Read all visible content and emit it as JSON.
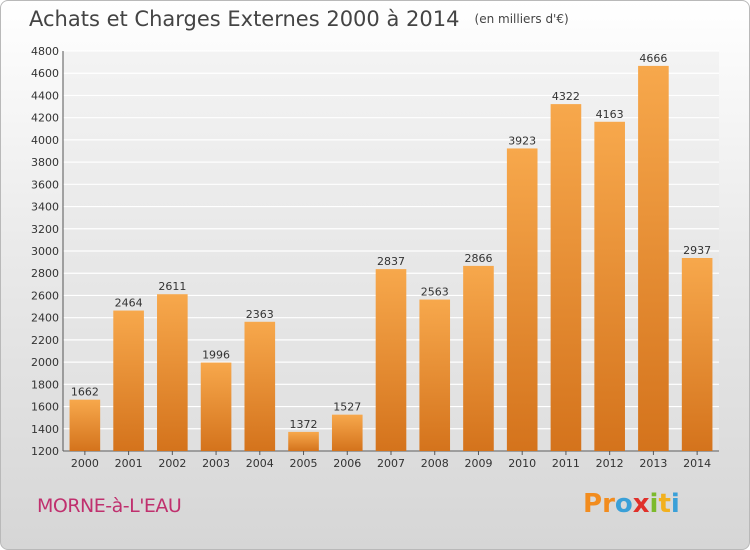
{
  "header": {
    "title": "Achats et Charges Externes 2000 à 2014",
    "unit": "(en milliers d'€)"
  },
  "footer": {
    "commune": "MORNE-à-L'EAU",
    "logo_letters": [
      "P",
      "r",
      "o",
      "x",
      "i",
      "t",
      "i"
    ],
    "logo_colors": [
      "#f28c1e",
      "#f28c1e",
      "#3aa0d8",
      "#e0302a",
      "#7cba2c",
      "#f2b01e",
      "#3aa0d8"
    ]
  },
  "colors": {
    "bar_light": "#f7a84c",
    "bar_dark": "#d4731c",
    "grid": "#ffffff"
  },
  "chart_data": {
    "type": "bar",
    "title": "Achats et Charges Externes 2000 à 2014",
    "subtitle": "(en milliers d'€)",
    "xlabel": "",
    "ylabel": "",
    "categories": [
      "2000",
      "2001",
      "2002",
      "2003",
      "2004",
      "2005",
      "2006",
      "2007",
      "2008",
      "2009",
      "2010",
      "2011",
      "2012",
      "2013",
      "2014"
    ],
    "values": [
      1662,
      2464,
      2611,
      1996,
      2363,
      1372,
      1527,
      2837,
      2563,
      2866,
      3923,
      4322,
      4163,
      4666,
      2937
    ],
    "ylim": [
      1200,
      4800
    ],
    "yticks": [
      1200,
      1400,
      1600,
      1800,
      2000,
      2200,
      2400,
      2600,
      2800,
      3000,
      3200,
      3400,
      3600,
      3800,
      4000,
      4200,
      4400,
      4600,
      4800
    ],
    "grid": true,
    "legend": "none"
  }
}
